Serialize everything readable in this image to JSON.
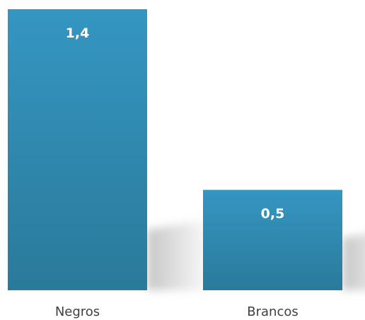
{
  "chart_data": {
    "type": "bar",
    "categories": [
      "Negros",
      "Brancos"
    ],
    "values": [
      1.4,
      0.5
    ],
    "value_labels": [
      "1,4",
      "0,5"
    ],
    "title": "",
    "xlabel": "",
    "ylabel": "",
    "ylim": [
      0,
      1.4
    ],
    "grid": false,
    "legend": "none",
    "bar_color_top": "#3596c2",
    "bar_color_bottom": "#2a7a9a",
    "value_label_color": "#ffffff",
    "category_label_color": "#404040",
    "shadow_color": "#bdbdbd"
  }
}
